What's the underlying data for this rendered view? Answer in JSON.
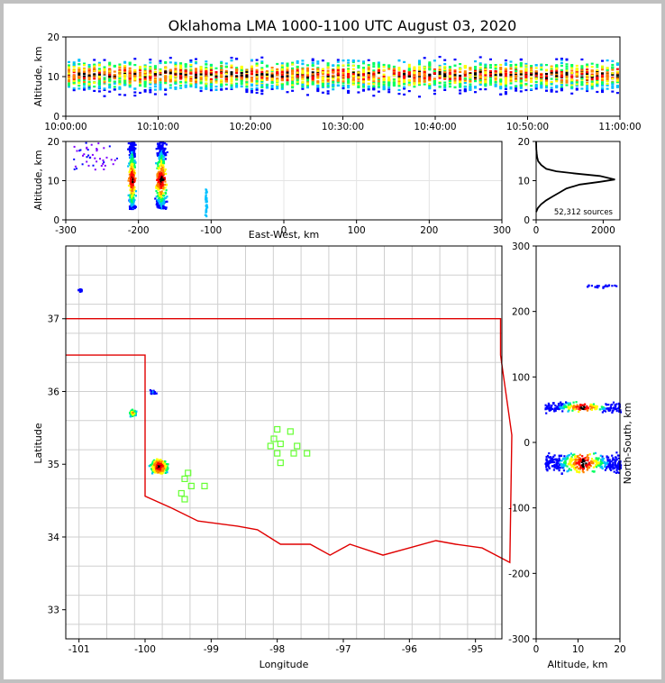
{
  "title": "Oklahoma LMA 1000-1100 UTC August 03, 2020",
  "source_count_label": "52,312 sources",
  "chart_data": [
    {
      "id": "time-altitude",
      "type": "heatmap",
      "xlabel": "",
      "ylabel": "Altitude, km",
      "x_ticks": [
        "10:00:00",
        "10:10:00",
        "10:20:00",
        "10:30:00",
        "10:40:00",
        "10:50:00",
        "11:00:00"
      ],
      "y_ticks": [
        0,
        10,
        20
      ],
      "xlim_minutes": [
        0,
        60
      ],
      "ylim": [
        0,
        20
      ],
      "core_altitude_km": [
        7,
        13
      ]
    },
    {
      "id": "ew-altitude",
      "type": "heatmap",
      "xlabel": "East-West, km",
      "ylabel": "Altitude, km",
      "x_ticks": [
        -300,
        -200,
        -100,
        0,
        100,
        200,
        300
      ],
      "y_ticks": [
        0,
        10,
        20
      ],
      "xlim": [
        -300,
        300
      ],
      "ylim": [
        0,
        20
      ],
      "clusters": [
        {
          "x": -210,
          "alt_from": 3,
          "alt_to": 20
        },
        {
          "x": -170,
          "alt_from": 3,
          "alt_to": 20
        },
        {
          "x": -108,
          "alt_from": 1,
          "alt_to": 8
        }
      ]
    },
    {
      "id": "altitude-histogram",
      "type": "line",
      "x_ticks": [
        0,
        2000
      ],
      "y_ticks": [
        0,
        10,
        20
      ],
      "xlim": [
        0,
        2500
      ],
      "ylim": [
        0,
        20
      ],
      "points": [
        [
          0,
          2
        ],
        [
          50,
          3
        ],
        [
          150,
          4
        ],
        [
          300,
          5
        ],
        [
          500,
          6
        ],
        [
          700,
          7
        ],
        [
          900,
          8
        ],
        [
          1300,
          9
        ],
        [
          1900,
          9.7
        ],
        [
          2350,
          10.3
        ],
        [
          1900,
          11.2
        ],
        [
          1200,
          11.8
        ],
        [
          600,
          12.4
        ],
        [
          300,
          13
        ],
        [
          150,
          14
        ],
        [
          60,
          15
        ],
        [
          30,
          16
        ],
        [
          15,
          17
        ],
        [
          5,
          18
        ],
        [
          0,
          20
        ]
      ]
    },
    {
      "id": "plan-view",
      "type": "scatter",
      "xlabel": "Longitude",
      "ylabel": "Latitude",
      "x_ticks": [
        -101,
        -100,
        -99,
        -98,
        -97,
        -96,
        -95
      ],
      "y_ticks": [
        33,
        34,
        35,
        36,
        37
      ],
      "xlim": [
        -101.2,
        -94.6
      ],
      "ylim": [
        32.6,
        38.0
      ],
      "clusters": [
        {
          "lon": -99.8,
          "lat": 34.98
        },
        {
          "lon": -100.2,
          "lat": 35.72
        },
        {
          "lon": -99.9,
          "lat": 36.0
        },
        {
          "lon": -101.0,
          "lat": 37.4
        }
      ],
      "stations": [
        [
          -98.0,
          35.48
        ],
        [
          -97.8,
          35.45
        ],
        [
          -98.05,
          35.35
        ],
        [
          -97.95,
          35.28
        ],
        [
          -98.1,
          35.25
        ],
        [
          -97.7,
          35.25
        ],
        [
          -97.55,
          35.15
        ],
        [
          -97.75,
          35.15
        ],
        [
          -98.0,
          35.15
        ],
        [
          -97.95,
          35.02
        ],
        [
          -99.35,
          34.88
        ],
        [
          -99.4,
          34.8
        ],
        [
          -99.3,
          34.7
        ],
        [
          -99.1,
          34.7
        ],
        [
          -99.45,
          34.6
        ],
        [
          -99.4,
          34.52
        ]
      ]
    },
    {
      "id": "ns-altitude",
      "type": "heatmap",
      "xlabel": "Altitude, km",
      "ylabel": "North-South, km",
      "x_ticks": [
        0,
        10,
        20
      ],
      "y_ticks": [
        -300,
        -200,
        -100,
        0,
        100,
        200,
        300
      ],
      "xlim": [
        0,
        20
      ],
      "ylim": [
        -300,
        300
      ],
      "clusters": [
        {
          "y": 55,
          "alt_from": 2,
          "alt_to": 20
        },
        {
          "y": -30,
          "alt_from": 2,
          "alt_to": 20
        },
        {
          "y": 240,
          "alt_from": 12,
          "alt_to": 20
        }
      ]
    }
  ]
}
